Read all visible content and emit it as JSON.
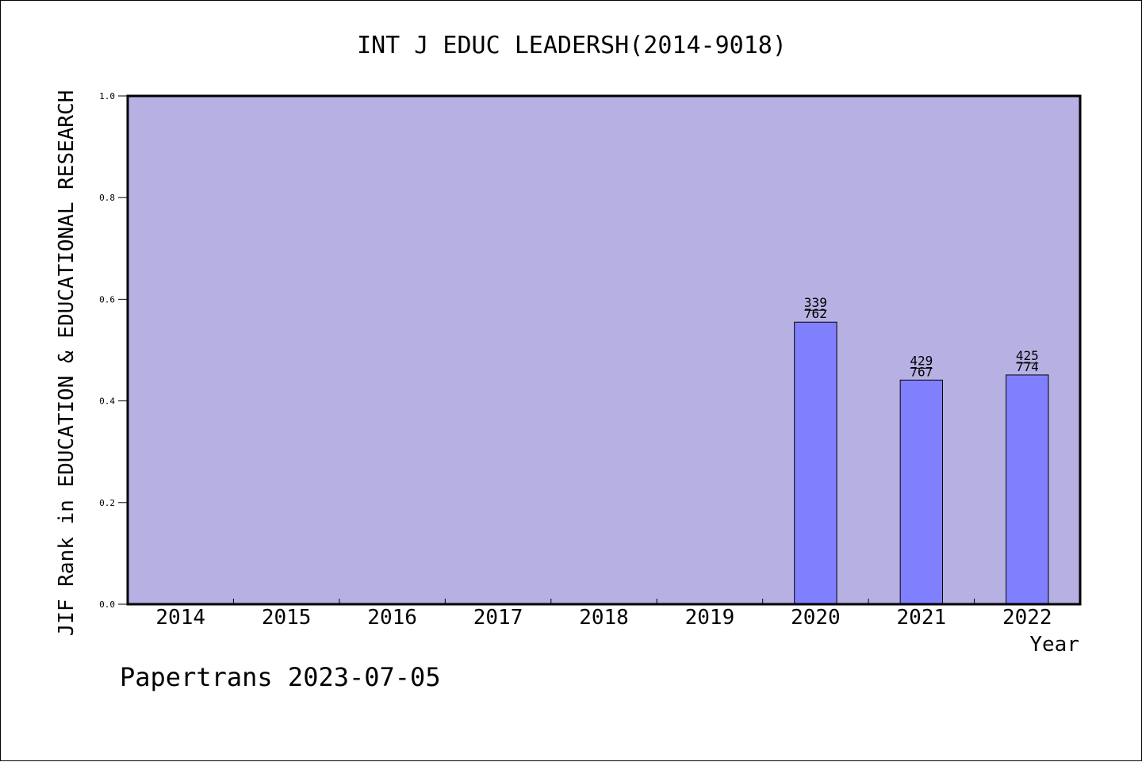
{
  "chart_data": {
    "type": "bar",
    "title": "INT J EDUC LEADERSH(2014-9018)",
    "xlabel": "Year",
    "ylabel": "JIF Rank in EDUCATION & EDUCATIONAL RESEARCH",
    "ylim": [
      0,
      1.0
    ],
    "yticks": [
      "0.0",
      "0.2",
      "0.4",
      "0.6",
      "0.8",
      "1.0"
    ],
    "categories": [
      "2014",
      "2015",
      "2016",
      "2017",
      "2018",
      "2019",
      "2020",
      "2021",
      "2022"
    ],
    "values": [
      null,
      null,
      null,
      null,
      null,
      null,
      0.555,
      0.441,
      0.451
    ],
    "labels": [
      null,
      null,
      null,
      null,
      null,
      null,
      {
        "rank": "339",
        "total": "762"
      },
      {
        "rank": "429",
        "total": "767"
      },
      {
        "rank": "425",
        "total": "774"
      }
    ],
    "grid": false,
    "colors": {
      "plot_background": "#b7b1e3",
      "bar_fill": "#8080ff",
      "bar_stroke": "#000000"
    }
  },
  "footer": {
    "source": "Papertrans 2023-07-05"
  }
}
